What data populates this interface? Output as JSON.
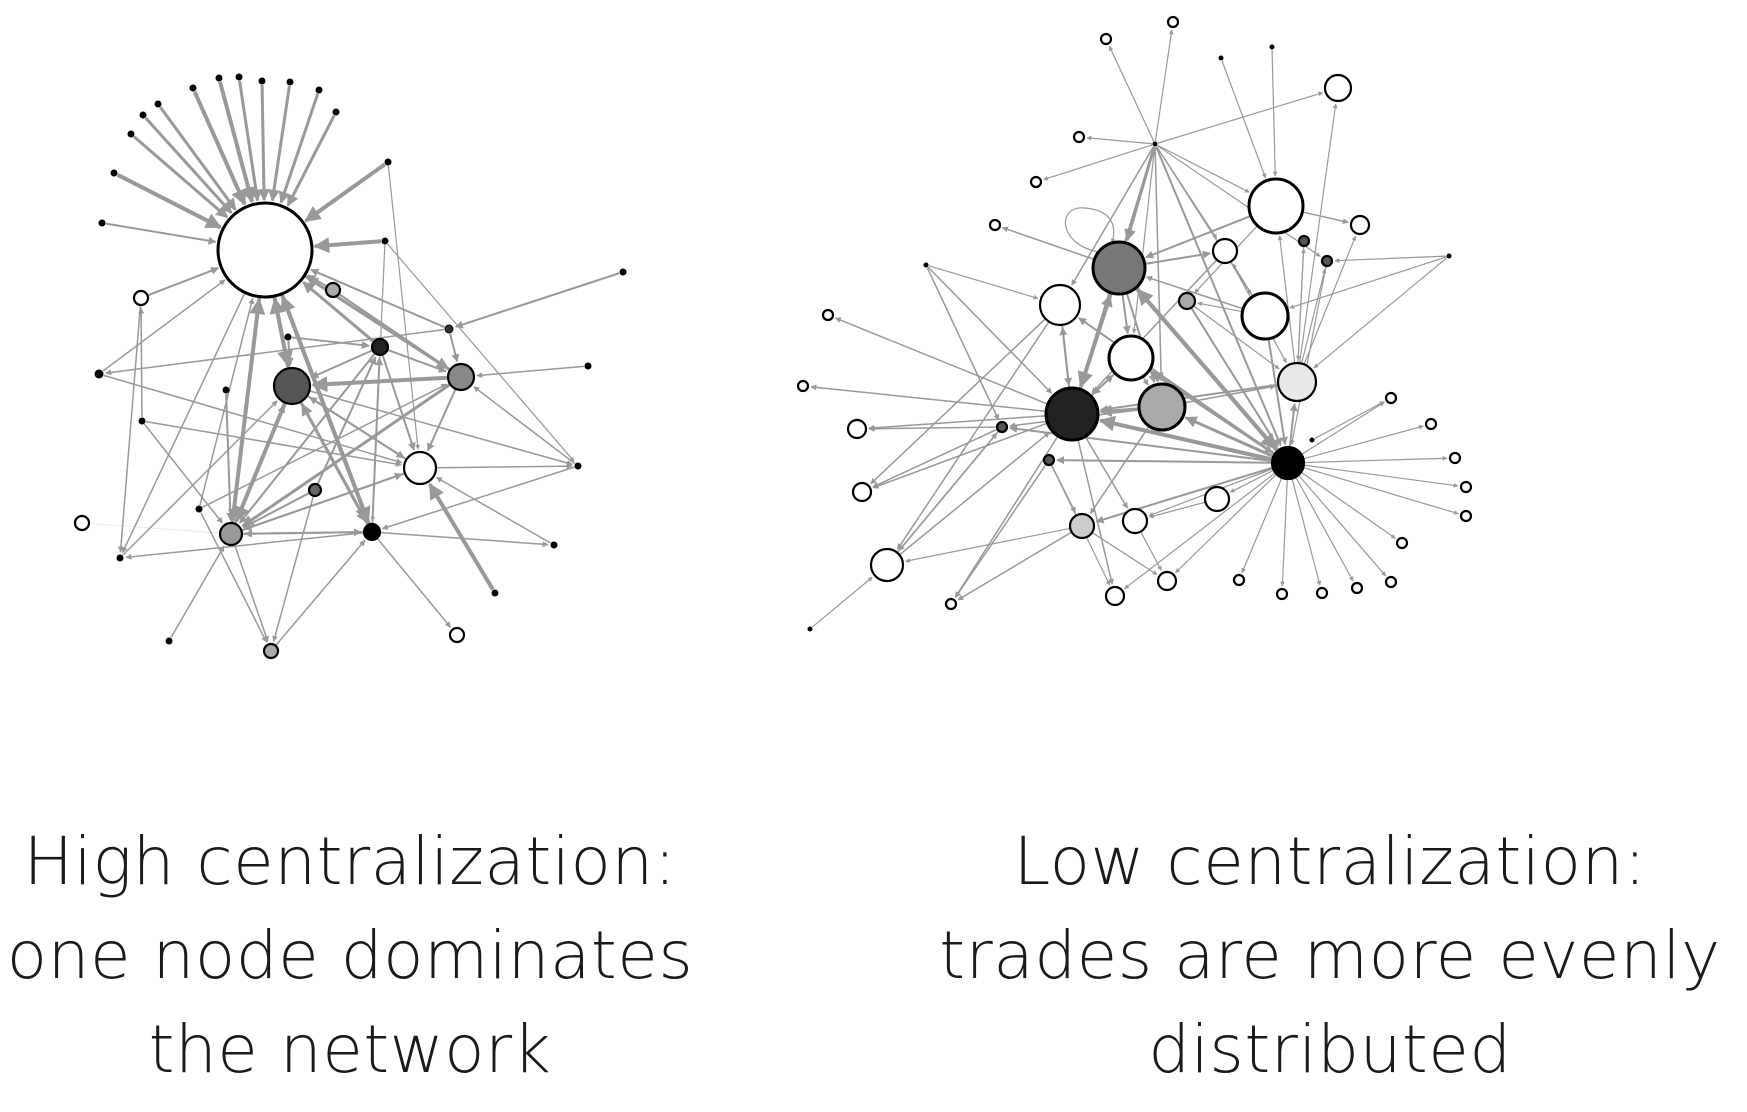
{
  "panels": [
    {
      "id": "high",
      "caption_lines": [
        "High centralization:",
        "one node dominates",
        "the network"
      ]
    },
    {
      "id": "low",
      "caption_lines": [
        "Low centralization:",
        "trades are more evenly",
        "distributed"
      ]
    }
  ],
  "colors": {
    "edge": "#999999",
    "node_stroke": "#000000",
    "caption": "#1a1a1a"
  }
}
